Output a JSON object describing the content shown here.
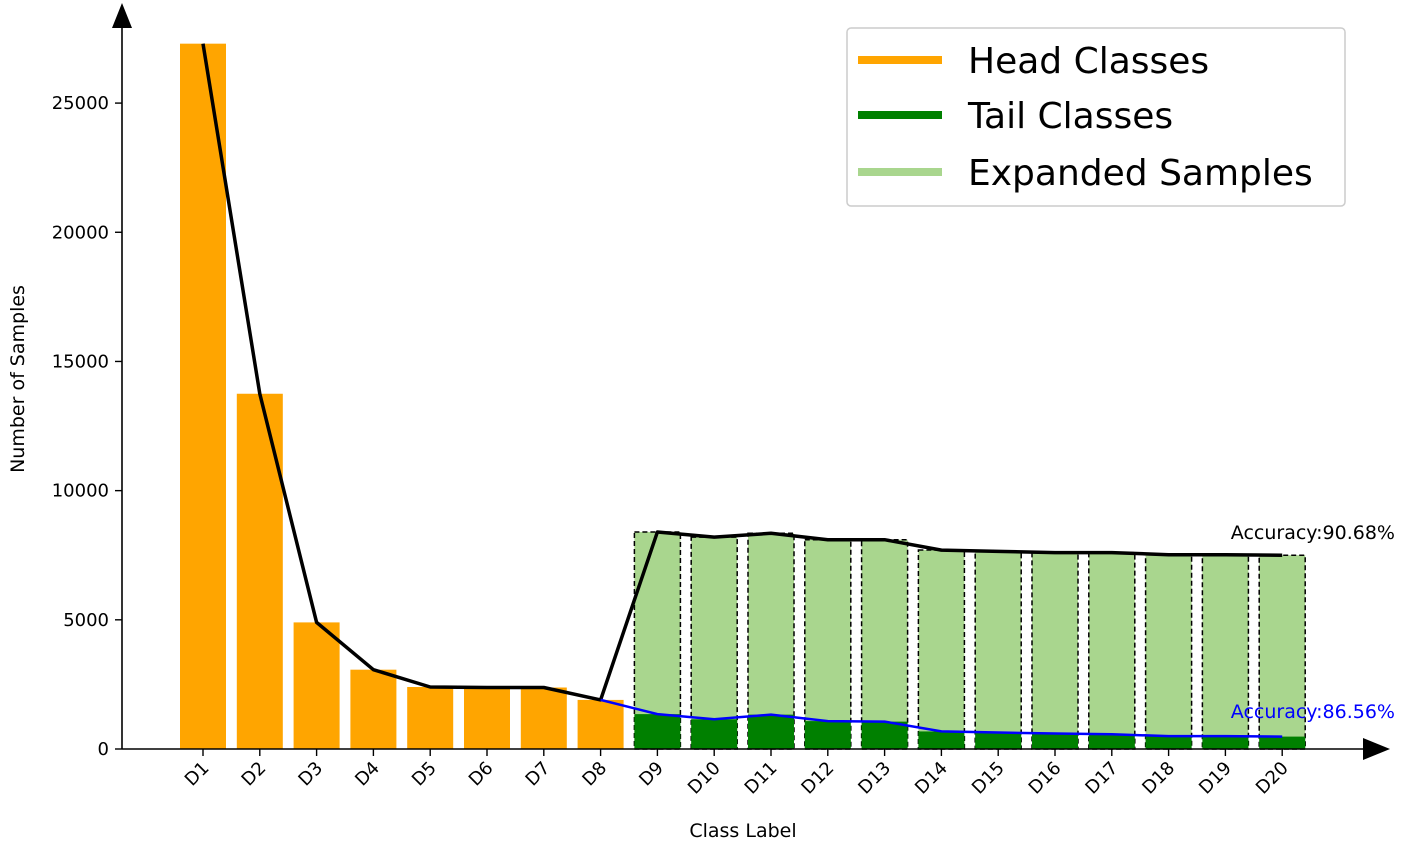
{
  "chart_data": {
    "type": "bar",
    "xlabel": "Class Label",
    "ylabel": "Number of Samples",
    "ylim": [
      0,
      27500
    ],
    "yticks": [
      0,
      5000,
      10000,
      15000,
      20000,
      25000
    ],
    "categories": [
      "D1",
      "D2",
      "D3",
      "D4",
      "D5",
      "D6",
      "D7",
      "D8",
      "D9",
      "D10",
      "D11",
      "D12",
      "D13",
      "D14",
      "D15",
      "D16",
      "D17",
      "D18",
      "D19",
      "D20"
    ],
    "series": [
      {
        "name": "Head Classes",
        "color": "#ffa500",
        "values": [
          27300,
          13750,
          4900,
          3070,
          2400,
          2380,
          2380,
          1900,
          null,
          null,
          null,
          null,
          null,
          null,
          null,
          null,
          null,
          null,
          null,
          null
        ]
      },
      {
        "name": "Tail Classes",
        "color": "#008000",
        "values": [
          null,
          null,
          null,
          null,
          null,
          null,
          null,
          null,
          1350,
          1150,
          1330,
          1080,
          1060,
          680,
          640,
          600,
          570,
          500,
          500,
          480
        ]
      },
      {
        "name": "Expanded Samples",
        "color": "#a9d68e",
        "values": [
          null,
          null,
          null,
          null,
          null,
          null,
          null,
          null,
          8400,
          8200,
          8350,
          8100,
          8100,
          7700,
          7650,
          7600,
          7600,
          7520,
          7520,
          7500
        ]
      }
    ],
    "lines": [
      {
        "color": "#000000",
        "values": [
          27300,
          13750,
          4900,
          3070,
          2400,
          2380,
          2380,
          1900,
          8400,
          8200,
          8350,
          8100,
          8100,
          7700,
          7650,
          7600,
          7600,
          7520,
          7520,
          7500
        ]
      },
      {
        "color": "#0000ff",
        "start_index": 7,
        "values": [
          1900,
          1350,
          1150,
          1330,
          1080,
          1060,
          680,
          640,
          600,
          570,
          500,
          500,
          480
        ]
      }
    ],
    "annotations": [
      {
        "text": "Accuracy:90.68%",
        "color": "#000000"
      },
      {
        "text": "Accuracy:86.56%",
        "color": "#0000ff"
      }
    ],
    "legend": {
      "placement": "top-right",
      "entries": [
        "Head Classes",
        "Tail Classes",
        "Expanded Samples"
      ]
    },
    "grid": false
  }
}
